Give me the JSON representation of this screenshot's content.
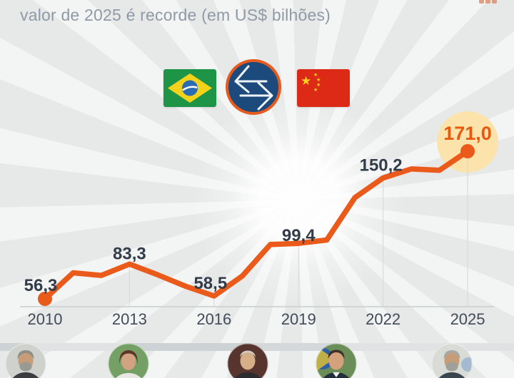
{
  "header": {
    "title": "valor de 2025 é recorde (em US$ bilhões)"
  },
  "icons": {
    "left_flag": "brazil-flag-icon",
    "center": "swap-arrows-icon",
    "right_flag": "china-flag-icon",
    "bottom_photos": [
      "lula-photo",
      "dilma-rousseff-photo",
      "michel-temer-photo",
      "jair-bolsonaro-photo",
      "lula-photo"
    ]
  },
  "colors": {
    "background": "#e7e9e9",
    "line": "#ea5a1b",
    "highlight_label": "#e8580e",
    "halo": "#fbe3ab",
    "value_label": "#333c49",
    "year_label": "#424c58",
    "title": "#8f9aa6",
    "axis": "#c8cdd0",
    "gridline": "#d4d8da"
  },
  "chart_data": {
    "type": "line",
    "title": "valor de 2025 é recorde (em US$ bilhões)",
    "unit": "US$ bilhões",
    "x": [
      2010,
      2011,
      2012,
      2013,
      2014,
      2015,
      2016,
      2017,
      2018,
      2019,
      2020,
      2021,
      2022,
      2023,
      2024,
      2025
    ],
    "values": [
      56.3,
      76.5,
      74.5,
      83.3,
      75.0,
      66.0,
      58.5,
      74.0,
      98.5,
      99.4,
      102.0,
      135.0,
      150.2,
      157.2,
      156.2,
      171.0
    ],
    "labeled_values_note": "only years 2010, 2013, 2016, 2019, 2022, 2025 carry printed labels; other values estimated from line position",
    "xticks": [
      "2010",
      "2013",
      "2016",
      "2019",
      "2022",
      "2025"
    ],
    "annotations": [
      {
        "year": 2010,
        "text": "56,3"
      },
      {
        "year": 2013,
        "text": "83,3"
      },
      {
        "year": 2016,
        "text": "58,5"
      },
      {
        "year": 2019,
        "text": "99,4"
      },
      {
        "year": 2022,
        "text": "150,2"
      },
      {
        "year": 2025,
        "text": "171,0",
        "highlight": true
      }
    ],
    "highlight_dots": [
      2010,
      2025
    ],
    "ylim": [
      50,
      180
    ],
    "grid": "vertical tick lines from baseline up to the series at labeled years",
    "legend": "none",
    "line_color": "#ea5a1b"
  }
}
